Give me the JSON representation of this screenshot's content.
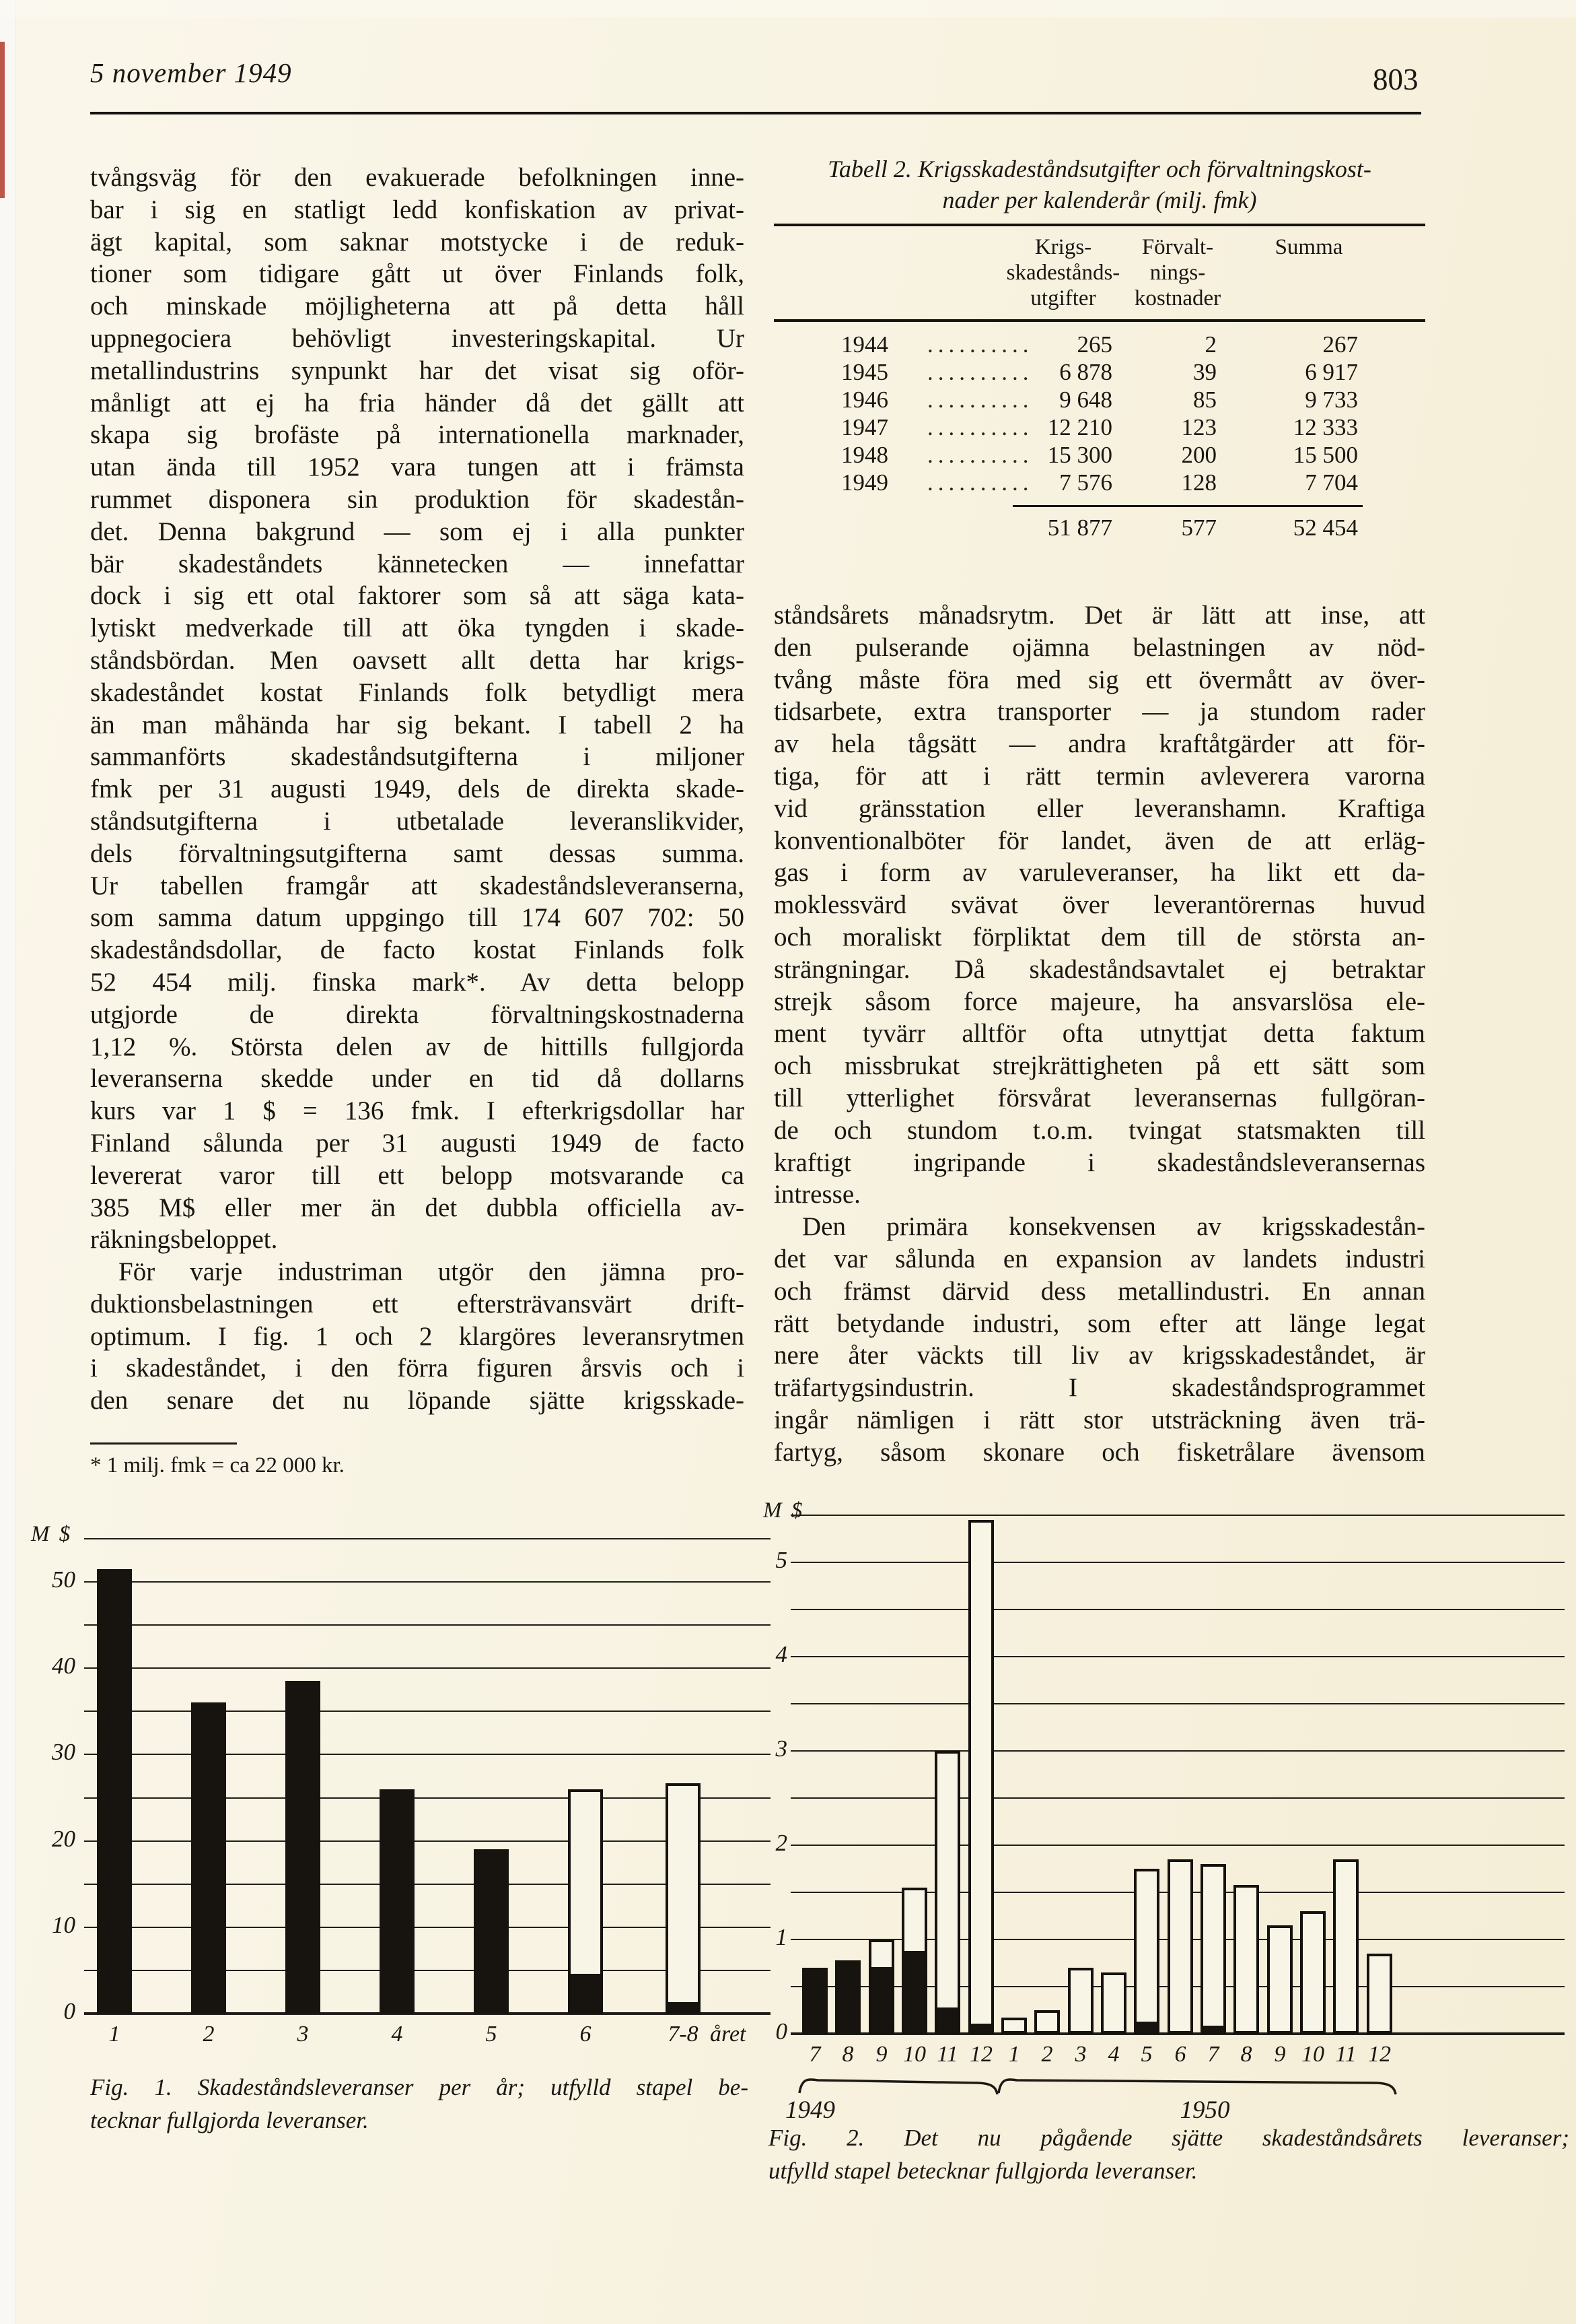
{
  "header": {
    "date": "5 november 1949",
    "page_number": "803"
  },
  "left_column": {
    "paragraphs": [
      {
        "indent": false,
        "last_line_justified": false,
        "lines": [
          "tvångsväg för den evakuerade befolkningen inne-",
          "bar i sig en statligt ledd konfiskation av privat-",
          "ägt kapital, som saknar motstycke i de reduk-",
          "tioner som tidigare gått ut över Finlands folk,",
          "och minskade möjligheterna att på detta håll",
          "uppnegociera behövligt investeringskapital. Ur",
          "metallindustrins synpunkt har det visat sig oför-",
          "månligt att ej ha fria händer då det gällt att",
          "skapa sig brofäste på internationella marknader,",
          "utan ända till 1952 vara tungen att i främsta",
          "rummet disponera sin produktion för skadestån-",
          "det. Denna bakgrund — som ej i alla punkter",
          "bär skadeståndets kännetecken — innefattar",
          "dock i sig ett otal faktorer som så att säga kata-",
          "lytiskt medverkade till att öka tyngden i skade-",
          "ståndsbördan. Men oavsett allt detta har krigs-",
          "skadeståndet kostat Finlands folk betydligt mera",
          "än man måhända har sig bekant. I tabell 2 ha",
          "sammanförts skadeståndsutgifterna i miljoner",
          "fmk per 31 augusti 1949, dels de direkta skade-",
          "ståndsutgifterna i utbetalade leveranslikvider,",
          "dels förvaltningsutgifterna samt dessas summa.",
          "Ur tabellen framgår att skadeståndsleveranserna,",
          "som samma datum uppgingo till 174 607 702: 50",
          "skadeståndsdollar, de facto kostat Finlands folk",
          "52 454 milj. finska mark*. Av detta belopp",
          "utgjorde de direkta förvaltningskostnaderna",
          "1,12 %. Största delen av de hittills fullgjorda",
          "leveranserna skedde under en tid då dollarns",
          "kurs var 1 $ = 136 fmk. I efterkrigsdollar har",
          "Finland sålunda per 31 augusti 1949 de facto",
          "levererat varor till ett belopp motsvarande ca",
          "385 M$ eller mer än det dubbla officiella av-",
          "räkningsbeloppet."
        ]
      },
      {
        "indent": true,
        "last_line_justified": true,
        "lines": [
          "För varje industriman utgör den jämna pro-",
          "duktionsbelastningen ett eftersträvansvärt drift-",
          "optimum. I fig. 1 och 2 klargöres leveransrytmen",
          "i skadeståndet, i den förra figuren årsvis och i",
          "den senare det nu löpande sjätte krigsskade-"
        ]
      }
    ],
    "footnote": "* 1 milj. fmk = ca 22 000 kr."
  },
  "right_column": {
    "paragraphs": [
      {
        "indent": false,
        "last_line_justified": false,
        "lines": [
          "ståndsårets månadsrytm. Det är lätt att inse, att",
          "den pulserande ojämna belastningen av nöd-",
          "tvång måste föra med sig ett övermått av över-",
          "tidsarbete, extra transporter — ja stundom rader",
          "av hela tågsätt — andra kraftåtgärder att för-",
          "tiga, för att i rätt termin avleverera varorna",
          "vid gränsstation eller leveranshamn. Kraftiga",
          "konventionalböter för landet, även de att erläg-",
          "gas i form av varuleveranser, ha likt ett da-",
          "moklessvärd svävat över leverantörernas huvud",
          "och moraliskt förpliktat dem till de största an-",
          "strängningar. Då skadeståndsavtalet ej betraktar",
          "strejk såsom force majeure, ha ansvarslösa ele-",
          "ment tyvärr alltför ofta utnyttjat detta faktum",
          "och missbrukat strejkrättigheten på ett sätt som",
          "till ytterlighet försvårat leveransernas fullgöran-",
          "de och stundom t.o.m. tvingat statsmakten till",
          "kraftigt ingripande i skadeståndsleveransernas",
          "intresse."
        ]
      },
      {
        "indent": true,
        "last_line_justified": true,
        "lines": [
          "Den primära konsekvensen av krigsskadestån-",
          "det var sålunda en expansion av landets industri",
          "och främst därvid dess metallindustri. En annan",
          "rätt betydande industri, som efter att länge legat",
          "nere åter väckts till liv av krigsskadeståndet, är",
          "träfartygsindustrin. I skadeståndsprogrammet",
          "ingår nämligen i rätt stor utsträckning även trä-",
          "fartyg, såsom skonare och fisketrålare ävensom"
        ]
      }
    ]
  },
  "table": {
    "title_line1": "Tabell 2. Krigsskadeståndsutgifter och förvaltningskost-",
    "title_line2": "nader per kalenderår (milj. fmk)",
    "headers": [
      [
        "Krigs-",
        "skadestånds-",
        "utgifter"
      ],
      [
        "Förvalt-",
        "nings-",
        "kostnader"
      ],
      [
        "Summa"
      ]
    ],
    "leader_dots": "..........",
    "rows": [
      [
        "1944",
        "265",
        "2",
        "267"
      ],
      [
        "1945",
        "6 878",
        "39",
        "6 917"
      ],
      [
        "1946",
        "9 648",
        "85",
        "9 733"
      ],
      [
        "1947",
        "12 210",
        "123",
        "12 333"
      ],
      [
        "1948",
        "15 300",
        "200",
        "15 500"
      ],
      [
        "1949",
        "7 576",
        "128",
        "7 704"
      ]
    ],
    "totals": [
      "51 877",
      "577",
      "52 454"
    ]
  },
  "fig1": {
    "caption_line1": "Fig. 1. Skadeståndsleveranser per år; utfylld stapel be-",
    "caption_line2": "tecknar fullgjorda leveranser.",
    "chart_data": {
      "type": "bar",
      "ylabel": "M $",
      "ylim": [
        0,
        55
      ],
      "grid_step": 5,
      "y_tick_labels": [
        "0",
        "10",
        "20",
        "30",
        "40",
        "50"
      ],
      "categories": [
        "1",
        "2",
        "3",
        "4",
        "5",
        "6",
        "7-8"
      ],
      "x_suffix": "året",
      "series": [
        {
          "name": "fullgjorda leveranser (utfylld stapel)",
          "values": [
            51.5,
            36,
            38.5,
            26,
            19,
            4.3,
            1
          ]
        },
        {
          "name": "leveranser totalt",
          "values": [
            51.5,
            36,
            38.5,
            26,
            19,
            26,
            26.7
          ]
        }
      ],
      "legend_position": "none",
      "grid": true
    }
  },
  "fig2": {
    "caption_line1": "Fig. 2. Det nu pågående sjätte skadeståndsårets leveranser;",
    "caption_line2": "utfylld stapel betecknar fullgjorda leveranser.",
    "chart_data": {
      "type": "bar",
      "ylabel": "M $",
      "ylim": [
        0,
        5.5
      ],
      "grid_step": 0.5,
      "y_tick_labels": [
        "0",
        "1",
        "2",
        "3",
        "4",
        "5"
      ],
      "categories": [
        "7",
        "8",
        "9",
        "10",
        "11",
        "12",
        "1",
        "2",
        "3",
        "4",
        "5",
        "6",
        "7",
        "8",
        "9",
        "10",
        "11",
        "12"
      ],
      "groups": [
        {
          "label": "1949",
          "from": 0,
          "to": 5
        },
        {
          "label": "1950",
          "from": 6,
          "to": 17
        }
      ],
      "series": [
        {
          "name": "fullgjorda leveranser (utfylld stapel)",
          "values": [
            0.7,
            0.78,
            0.68,
            0.85,
            0.25,
            0.08,
            0,
            0,
            0,
            0,
            0.1,
            0,
            0.06,
            0,
            0,
            0,
            0,
            0
          ]
        },
        {
          "name": "leveranser totalt",
          "values": [
            0.7,
            0.78,
            1.0,
            1.55,
            3.0,
            5.45,
            0.17,
            0.25,
            0.7,
            0.65,
            1.75,
            1.85,
            1.8,
            1.58,
            1.15,
            1.3,
            1.85,
            0.85
          ]
        }
      ],
      "legend_position": "none",
      "grid": true
    }
  }
}
